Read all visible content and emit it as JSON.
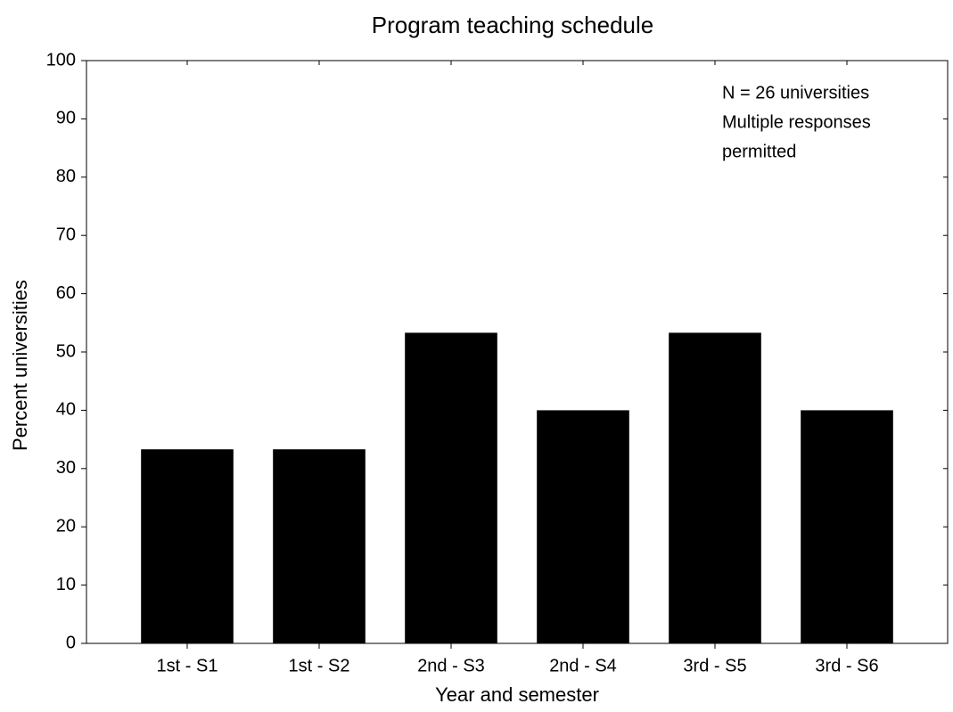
{
  "chart_data": {
    "type": "bar",
    "title": "Program teaching schedule",
    "xlabel": "Year and semester",
    "ylabel": "Percent universities",
    "annotation": [
      "N = 26 universities",
      "Multiple responses",
      "permitted"
    ],
    "categories": [
      "1st - S1",
      "1st - S2",
      "2nd - S3",
      "2nd - S4",
      "3rd - S5",
      "3rd - S6"
    ],
    "values": [
      33.3,
      33.3,
      53.3,
      40,
      53.3,
      40
    ],
    "color": "#000000",
    "ylim": [
      0,
      100
    ],
    "yticks": [
      0,
      10,
      20,
      30,
      40,
      50,
      60,
      70,
      80,
      90,
      100
    ],
    "grid": false
  }
}
